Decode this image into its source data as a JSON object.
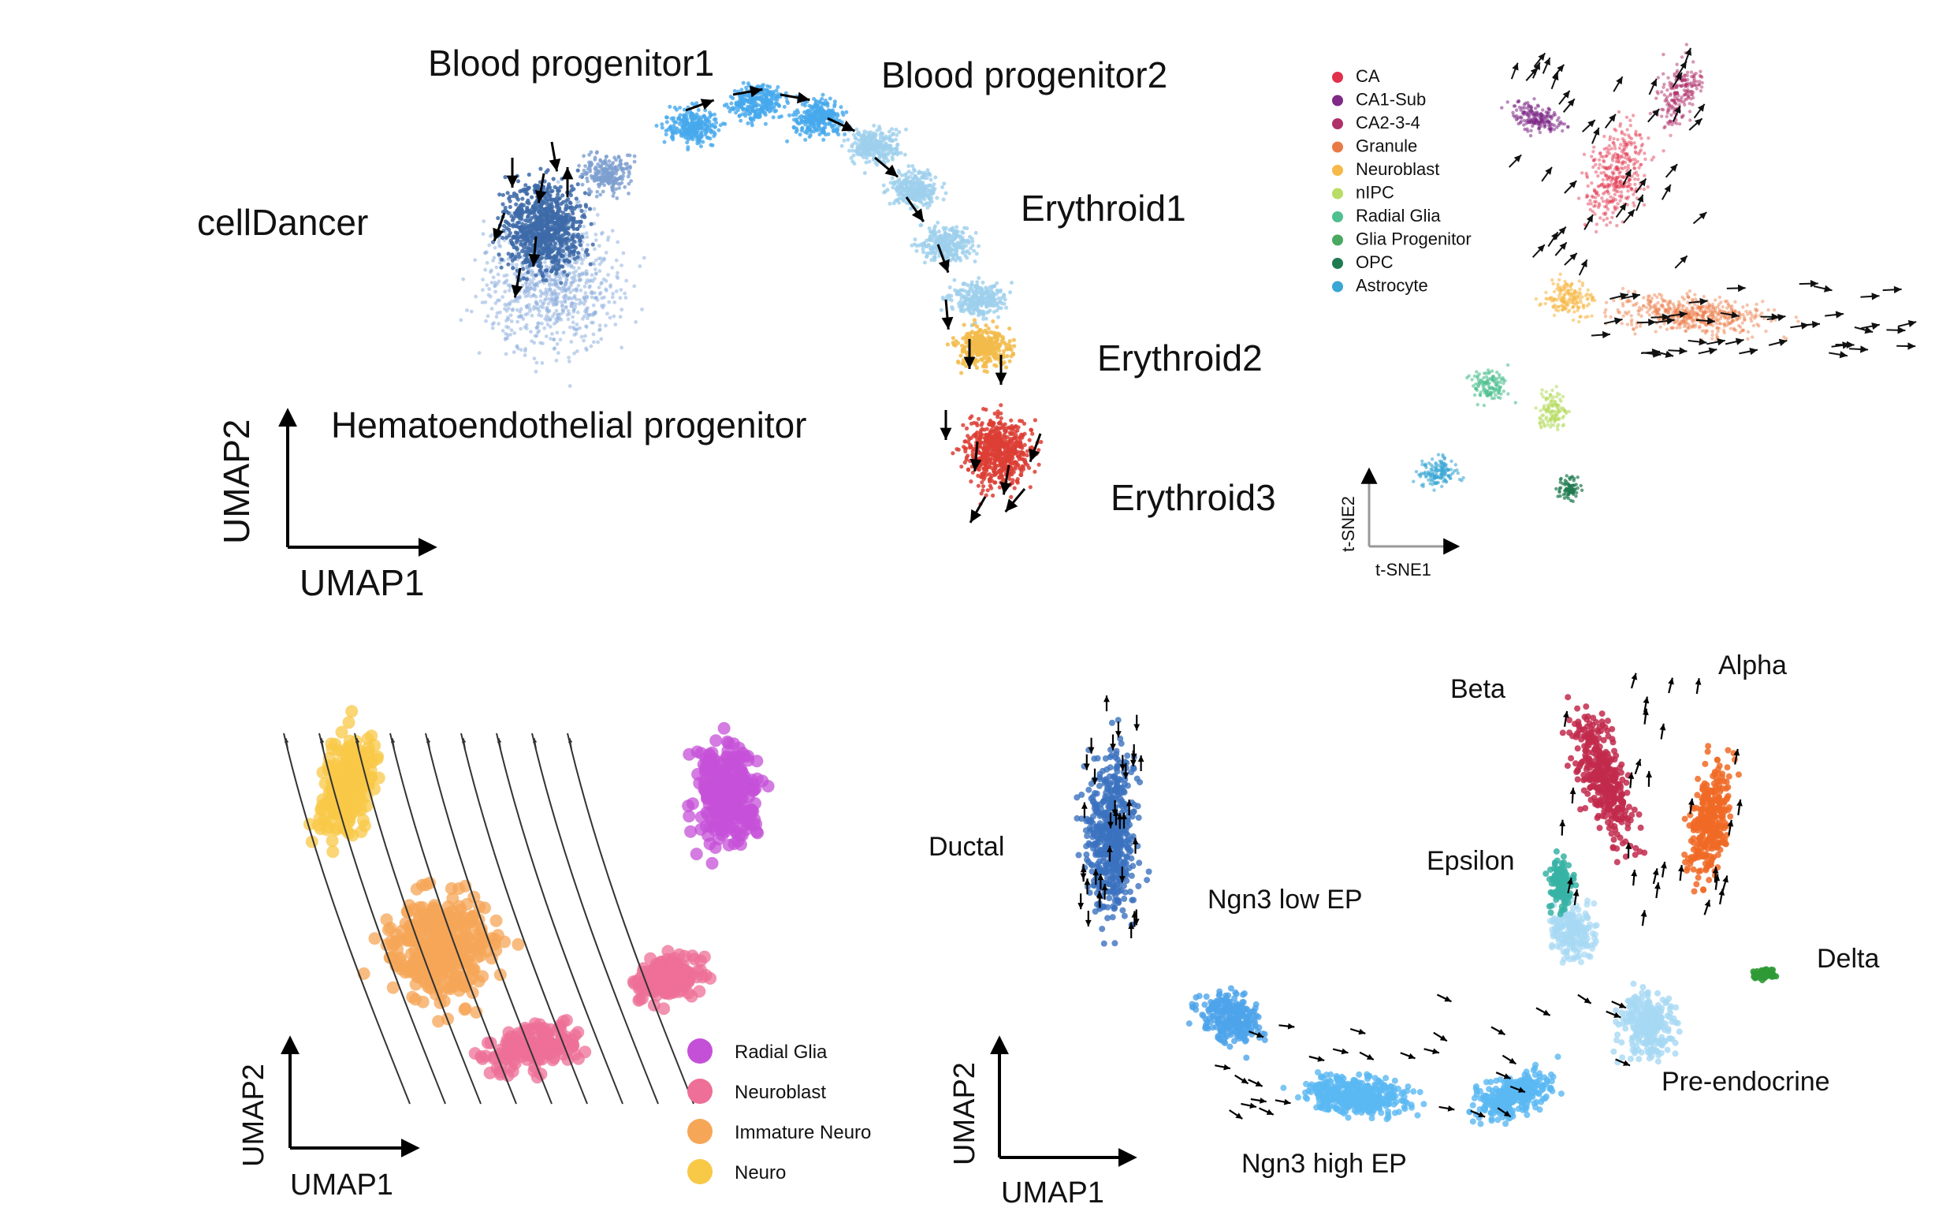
{
  "palette": {
    "blood_prog1": "#3d6aa8",
    "blood_prog1_light": "#7d9fd0",
    "blood_prog2": "#46a9ec",
    "erythroid1": "#9ed0ec",
    "erythroid2": "#f2bb4a",
    "erythroid3": "#dc3e35",
    "hemato": "#8fb0de",
    "ca": "#e0304a",
    "ca1_sub": "#7e2a86",
    "ca2_3_4": "#b0306a",
    "granule": "#ea7a45",
    "neuroblast_hip": "#f6b94a",
    "nipc": "#b8dc64",
    "radial_glia_hip": "#4fc08f",
    "glia_progenitor": "#4aa860",
    "opc": "#1f7a50",
    "astrocyte": "#3aa6d4",
    "radial_glia": "#c550d8",
    "neuroblast": "#ee6f97",
    "immature_neuro": "#f5a657",
    "neuro": "#f8c847",
    "ductal": "#3b72bf",
    "ngn3_low": "#4ea4ea",
    "ngn3_high": "#5ab8f2",
    "pre_endocrine": "#a6d8f4",
    "beta": "#c22a4c",
    "alpha": "#f06a26",
    "epsilon": "#37b3a4",
    "delta": "#2f9a36"
  },
  "panel_a": {
    "title": "cellDancer",
    "labels": {
      "blood_progenitor1": "Blood progenitor1",
      "blood_progenitor2": "Blood progenitor2",
      "erythroid1": "Erythroid1",
      "erythroid2": "Erythroid2",
      "erythroid3": "Erythroid3",
      "hematoendothelial_progenitor": "Hematoendothelial progenitor"
    },
    "axis_x": "UMAP1",
    "axis_y": "UMAP2"
  },
  "panel_b": {
    "legend": [
      {
        "label": "CA",
        "color": "#e0304a"
      },
      {
        "label": "CA1-Sub",
        "color": "#7e2a86"
      },
      {
        "label": "CA2-3-4",
        "color": "#b0306a"
      },
      {
        "label": "Granule",
        "color": "#ea7a45"
      },
      {
        "label": "Neuroblast",
        "color": "#f6b94a"
      },
      {
        "label": "nIPC",
        "color": "#b8dc64"
      },
      {
        "label": "Radial Glia",
        "color": "#4fc08f"
      },
      {
        "label": "Glia Progenitor",
        "color": "#4aa860"
      },
      {
        "label": "OPC",
        "color": "#1f7a50"
      },
      {
        "label": "Astrocyte",
        "color": "#3aa6d4"
      }
    ],
    "axis_x": "t-SNE1",
    "axis_y": "t-SNE2"
  },
  "panel_c": {
    "legend": [
      {
        "label": "Radial Glia",
        "color": "#c550d8"
      },
      {
        "label": "Neuroblast",
        "color": "#ee6f97"
      },
      {
        "label": "Immature Neuro",
        "color": "#f5a657"
      },
      {
        "label": "Neuro",
        "color": "#f8c847"
      }
    ],
    "axis_x": "UMAP1",
    "axis_y": "UMAP2"
  },
  "panel_d": {
    "labels": {
      "beta": "Beta",
      "alpha": "Alpha",
      "ductal": "Ductal",
      "epsilon": "Epsilon",
      "ngn3_low_ep": "Ngn3 low EP",
      "delta": "Delta",
      "pre_endocrine": "Pre-endocrine",
      "ngn3_high_ep": "Ngn3 high EP"
    },
    "axis_x": "UMAP1",
    "axis_y": "UMAP2"
  }
}
